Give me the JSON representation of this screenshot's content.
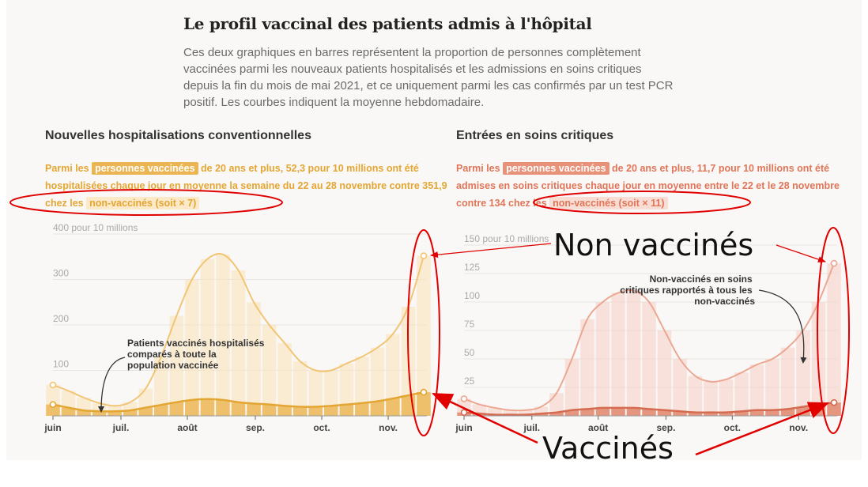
{
  "title": "Le profil vaccinal des patients admis à l'hôpital",
  "intro": "Ces deux graphiques en barres représentent la proportion de personnes complètement vaccinées parmi les nouveaux patients hospitalisés et les admissions en soins critiques depuis la fin du mois de mai 2021, et ce uniquement parmi les cas confirmés par un test PCR positif. Les courbes indiquent la moyenne hebdomadaire.",
  "colors": {
    "left_vax": "#ecb553",
    "left_unvax": "#fbe2b7",
    "left_vax_line": "#e4a633",
    "left_unvax_line": "#f2c574",
    "right_vax": "#e08368",
    "right_unvax": "#f6cec2",
    "right_vax_line": "#d56b50",
    "right_unvax_line": "#eca793",
    "annotation_red": "#e00000"
  },
  "left": {
    "chart_title": "Nouvelles hospitalisations conventionnelles",
    "note": {
      "pre": "Parmi les",
      "hl1": "personnes vaccinées",
      "mid": "de 20 ans et plus, 52,3 pour 10 millions ont été hospitalisées chaque jour en moyenne la semaine du 22 au 28 novembre contre 351,9 chez les",
      "hl2": "non-vaccinés (soit × 7)"
    },
    "unit_label": "400 pour 10 millions",
    "annotation": "Patients vaccinés hospitalisés\ncomparés à toute la\npopulation vaccinée"
  },
  "right": {
    "chart_title": "Entrées en soins critiques",
    "note": {
      "pre": "Parmi les",
      "hl1": "personnes vaccinées",
      "mid": "de 20 ans et plus, 11,7 pour 10 millions ont été admises en soins critiques chaque jour en moyenne entre le 22 et le 28 novembre contre 134 chez les",
      "hl2": "non-vaccinés (soit × 11)"
    },
    "unit_label": "150 pour 10 millions",
    "annotation": "Non-vaccinés en soins\ncritiques rapportés à tous les\nnon-vaccinés"
  },
  "overlay": {
    "non_vaccines": "Non vaccinés",
    "vaccines": "Vaccinés"
  },
  "chart_data": [
    {
      "type": "bar",
      "chart_title": "Nouvelles hospitalisations conventionnelles",
      "ylim": [
        0,
        400
      ],
      "y_ticks": [
        100,
        200,
        300
      ],
      "x_ticks": [
        "juin",
        "juil.",
        "août",
        "sep.",
        "oct.",
        "nov."
      ],
      "x_tick_weeks": [
        0,
        4.4,
        8.7,
        13.1,
        17.4,
        21.7
      ],
      "series": [
        {
          "name": "non-vaccinés",
          "values": [
            68,
            55,
            40,
            28,
            22,
            30,
            60,
            130,
            220,
            300,
            345,
            355,
            320,
            250,
            200,
            160,
            120,
            100,
            100,
            115,
            130,
            150,
            180,
            240,
            352
          ]
        },
        {
          "name": "personnes vaccinées",
          "values": [
            25,
            18,
            12,
            10,
            10,
            12,
            18,
            24,
            30,
            35,
            37,
            35,
            30,
            27,
            25,
            22,
            20,
            20,
            22,
            25,
            28,
            32,
            38,
            45,
            52
          ]
        }
      ]
    },
    {
      "type": "bar",
      "chart_title": "Entrées en soins critiques",
      "ylim": [
        0,
        150
      ],
      "y_ticks": [
        25,
        50,
        75,
        100,
        125
      ],
      "x_ticks": [
        "juin",
        "juil.",
        "août",
        "sep.",
        "oct.",
        "nov."
      ],
      "x_tick_weeks": [
        0,
        4.4,
        8.7,
        13.1,
        17.4,
        21.7
      ],
      "series": [
        {
          "name": "non-vaccinés",
          "values": [
            15,
            10,
            7,
            5,
            5,
            8,
            20,
            50,
            85,
            100,
            108,
            110,
            100,
            75,
            50,
            35,
            30,
            32,
            38,
            45,
            50,
            60,
            75,
            100,
            134
          ]
        },
        {
          "name": "personnes vaccinées",
          "values": [
            3,
            2,
            1,
            1,
            1,
            2,
            3,
            5,
            6,
            7,
            7,
            7,
            6,
            5,
            4,
            3,
            3,
            3,
            4,
            5,
            5,
            6,
            8,
            10,
            11.7
          ]
        }
      ]
    }
  ]
}
